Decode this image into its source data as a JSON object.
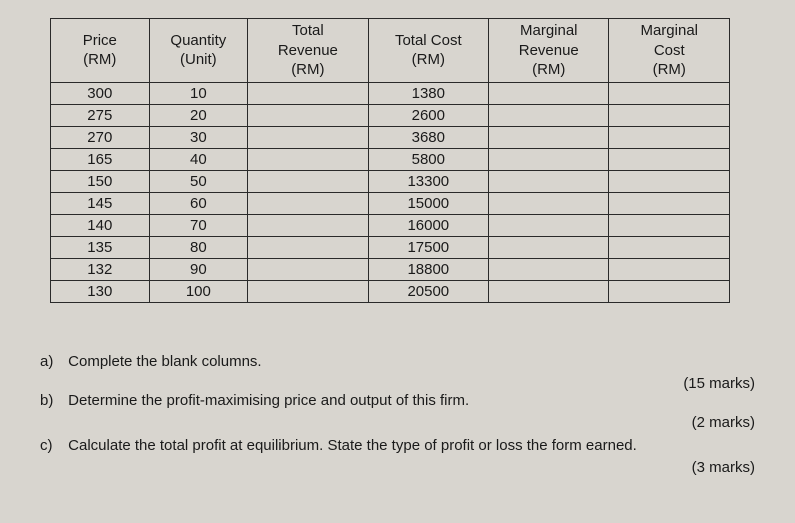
{
  "table": {
    "columns": [
      "Price\n(RM)",
      "Quantity\n(Unit)",
      "Total\nRevenue\n(RM)",
      "Total Cost\n(RM)",
      "Marginal\nRevenue\n(RM)",
      "Marginal\nCost\n(RM)"
    ],
    "rows": [
      [
        "300",
        "10",
        "",
        "1380",
        "",
        ""
      ],
      [
        "275",
        "20",
        "",
        "2600",
        "",
        ""
      ],
      [
        "270",
        "30",
        "",
        "3680",
        "",
        ""
      ],
      [
        "165",
        "40",
        "",
        "5800",
        "",
        ""
      ],
      [
        "150",
        "50",
        "",
        "13300",
        "",
        ""
      ],
      [
        "145",
        "60",
        "",
        "15000",
        "",
        ""
      ],
      [
        "140",
        "70",
        "",
        "16000",
        "",
        ""
      ],
      [
        "135",
        "80",
        "",
        "17500",
        "",
        ""
      ],
      [
        "132",
        "90",
        "",
        "18800",
        "",
        ""
      ],
      [
        "130",
        "100",
        "",
        "20500",
        "",
        ""
      ]
    ],
    "col_widths": [
      "90px",
      "90px",
      "110px",
      "110px",
      "110px",
      "110px"
    ]
  },
  "questions": {
    "a": {
      "label": "a)",
      "text": "Complete the blank columns.",
      "marks": "(15 marks)"
    },
    "b": {
      "label": "b)",
      "text": "Determine the profit-maximising price and output of this firm.",
      "marks": "(2 marks)"
    },
    "c": {
      "label": "c)",
      "text": "Calculate the total profit at equilibrium. State the type of profit or loss the form earned.",
      "marks": "(3 marks)"
    }
  }
}
